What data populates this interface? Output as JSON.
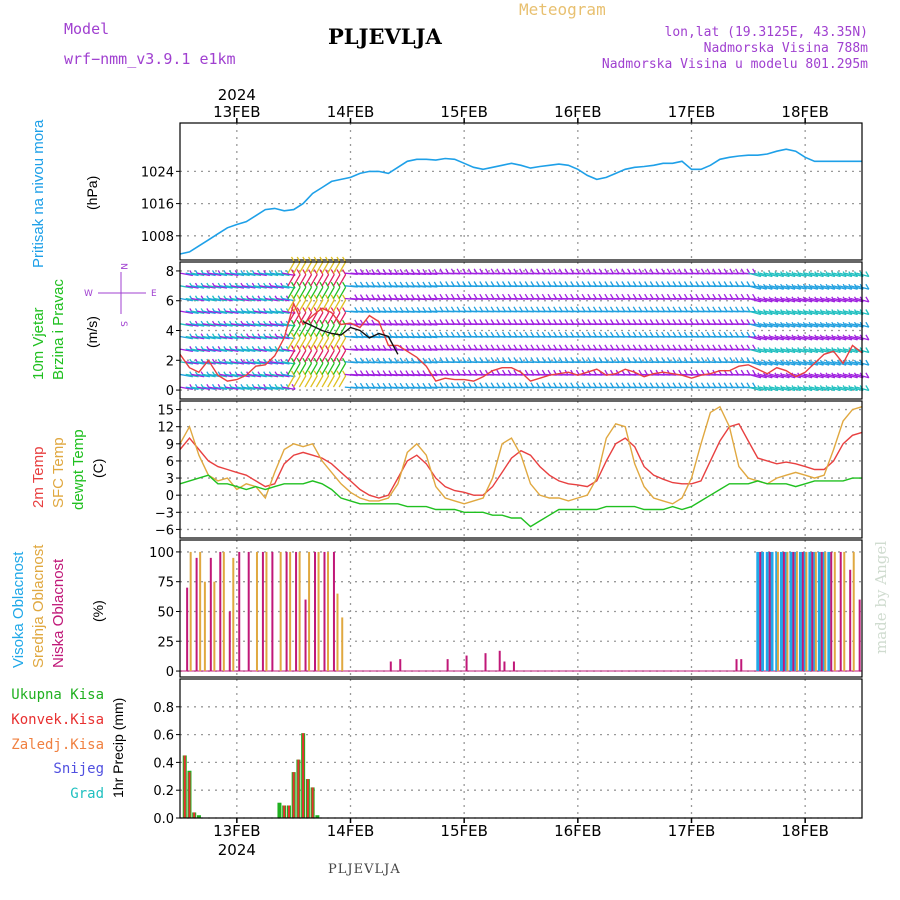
{
  "header": {
    "model_label": "Model",
    "model_name": "wrf−nmm_v3.9.1  e1km",
    "station": "PLJEVLJA",
    "meteogram": "Meteogram",
    "lonlat": "lon,lat (19.3125E, 43.35N)",
    "altitude": "Nadmorska Visina 788m",
    "model_altitude": "Nadmorska Visina u modelu 801.295m",
    "footer_station": "PLJEVLJA",
    "made_by": "made by Angel"
  },
  "axis_dates": {
    "year": "2024",
    "labels": [
      "13FEB",
      "14FEB",
      "15FEB",
      "16FEB",
      "17FEB",
      "18FEB"
    ]
  },
  "panel_labels": {
    "pressure_title": "Pritisak na nivou mora",
    "pressure_unit": "(hPa)",
    "wind_title_1": "10m Vjetar",
    "wind_title_2": "Brzina i Pravac",
    "wind_unit": "(m/s)",
    "wind_compass_w": "W",
    "wind_compass_e": "E",
    "wind_compass_n": "N",
    "wind_compass_s": "S",
    "temp_2m": "2m Temp",
    "temp_sfc": "SFC Temp",
    "temp_dewpt": "dewpt Temp",
    "temp_unit": "(C)",
    "cloud_high": "Visoka Oblacnost",
    "cloud_mid": "Srednja Oblacnost",
    "cloud_low": "Niska Oblacnost",
    "cloud_unit": "(%)",
    "precip_total": "Ukupna  Kisa",
    "precip_conv": "Konvek.Kisa",
    "precip_frozen": "Zaledj.Kisa",
    "precip_snow": "Snijeg",
    "precip_graupel": "Grad",
    "precip_unit": "1hr Precip (mm)"
  },
  "colors": {
    "pressure": "#1ea0e8",
    "temp_2m": "#e84040",
    "temp_sfc": "#e0a840",
    "dewpt": "#20c020",
    "cloud_high": "#20a8e8",
    "cloud_mid": "#e0a840",
    "cloud_low": "#c01878",
    "precip_total": "#20b020",
    "precip_conv": "#e83030",
    "precip_frozen": "#f08040",
    "precip_snow": "#5050e0",
    "precip_graupel": "#20c0c0",
    "grid": "#888888"
  },
  "chart_data": [
    {
      "type": "line",
      "name_panel": "pressure",
      "x_unit": "hours since 12FEB 12UTC",
      "xlim": [
        0,
        144
      ],
      "ylim": [
        1002,
        1036
      ],
      "yticks": [
        1008,
        1016,
        1024
      ],
      "x": [
        0,
        2,
        4,
        6,
        8,
        10,
        12,
        14,
        16,
        18,
        20,
        22,
        24,
        26,
        28,
        30,
        32,
        34,
        36,
        38,
        40,
        42,
        44,
        46,
        48,
        50,
        52,
        54,
        56,
        58,
        60,
        62,
        64,
        66,
        68,
        70,
        72,
        74,
        76,
        78,
        80,
        82,
        84,
        86,
        88,
        90,
        92,
        94,
        96,
        98,
        100,
        102,
        104,
        106,
        108,
        110,
        112,
        114,
        116,
        118,
        120,
        122,
        124,
        126,
        128,
        130,
        132,
        134,
        136,
        138,
        140,
        142,
        144
      ],
      "y": [
        1003.5,
        1004,
        1005.5,
        1007,
        1008.5,
        1010,
        1010.8,
        1011.5,
        1013,
        1014.5,
        1014.8,
        1014.2,
        1014.5,
        1016,
        1018.5,
        1020,
        1021.5,
        1022,
        1022.5,
        1023.5,
        1024,
        1024,
        1023.5,
        1025,
        1026.5,
        1027,
        1027,
        1026.8,
        1027.2,
        1027,
        1026,
        1025,
        1024.5,
        1025,
        1025.5,
        1026,
        1025.5,
        1024.8,
        1025.2,
        1025.5,
        1025.8,
        1025.5,
        1024.5,
        1023,
        1022,
        1022.5,
        1023.5,
        1024.5,
        1025,
        1025.2,
        1025.5,
        1026,
        1026,
        1026.5,
        1024.5,
        1024.5,
        1025.5,
        1027,
        1027.5,
        1027.8,
        1028,
        1028,
        1028.3,
        1029,
        1029.5,
        1029,
        1027.5,
        1026.5,
        1026.5,
        1026.5,
        1026.5,
        1026.5,
        1026.5
      ],
      "series_color_key": "pressure",
      "ylabel": "(hPa)"
    },
    {
      "type": "line",
      "name_panel": "wind",
      "xlim": [
        0,
        144
      ],
      "ylim": [
        -0.6,
        8.6
      ],
      "yticks": [
        0,
        2,
        4,
        6,
        8
      ],
      "series": [
        {
          "name": "speed",
          "color": "#e84040",
          "x": [
            0,
            2,
            4,
            6,
            8,
            10,
            12,
            14,
            16,
            18,
            20,
            22,
            24,
            26,
            28,
            30,
            32,
            34,
            36,
            38,
            40,
            42,
            44,
            46,
            48,
            50,
            52,
            54,
            56,
            58,
            60,
            62,
            64,
            66,
            68,
            70,
            72,
            74,
            76,
            78,
            80,
            82,
            84,
            86,
            88,
            90,
            92,
            94,
            96,
            98,
            100,
            102,
            104,
            106,
            108,
            110,
            112,
            114,
            116,
            118,
            120,
            122,
            124,
            126,
            128,
            130,
            132,
            134,
            136,
            138,
            140,
            142,
            144
          ],
          "y": [
            2.4,
            1.5,
            1.2,
            2.0,
            1.0,
            0.6,
            0.7,
            1.0,
            1.6,
            1.7,
            2.3,
            3.5,
            5.8,
            4.4,
            5.0,
            5.5,
            5.2,
            4.4,
            4.5,
            4.2,
            5.0,
            4.6,
            3.0,
            3.0,
            2.6,
            2.2,
            1.6,
            0.6,
            0.8,
            0.7,
            0.7,
            0.6,
            0.9,
            1.3,
            1.5,
            1.5,
            1.2,
            0.6,
            0.8,
            1.0,
            1.1,
            1.2,
            1.0,
            1.2,
            1.4,
            1.0,
            1.1,
            1.4,
            1.2,
            0.9,
            1.1,
            1.2,
            1.1,
            1.0,
            0.8,
            1.0,
            1.1,
            1.3,
            1.3,
            1.6,
            1.7,
            1.4,
            1.1,
            1.5,
            1.3,
            0.9,
            1.2,
            1.8,
            2.4,
            2.6,
            1.8,
            3.0,
            2.5
          ]
        },
        {
          "name": "gust",
          "color": "#111111",
          "x": [
            26,
            28,
            30,
            32,
            34,
            36,
            38,
            40,
            42,
            44,
            46
          ],
          "y": [
            4.6,
            4.3,
            4.0,
            3.8,
            3.7,
            4.2,
            4.0,
            3.5,
            3.8,
            3.6,
            2.4
          ]
        }
      ],
      "ylabel": "(m/s)"
    },
    {
      "type": "line",
      "name_panel": "temperature",
      "xlim": [
        0,
        144
      ],
      "ylim": [
        -7.5,
        16.5
      ],
      "yticks": [
        -6,
        -3,
        0,
        3,
        6,
        9,
        12,
        15
      ],
      "series": [
        {
          "name": "2m Temp",
          "color_key": "temp_2m",
          "x": [
            0,
            2,
            4,
            6,
            8,
            10,
            12,
            14,
            16,
            18,
            20,
            22,
            24,
            26,
            28,
            30,
            32,
            34,
            36,
            38,
            40,
            42,
            44,
            46,
            48,
            50,
            52,
            54,
            56,
            58,
            60,
            62,
            64,
            66,
            68,
            70,
            72,
            74,
            76,
            78,
            80,
            82,
            84,
            86,
            88,
            90,
            92,
            94,
            96,
            98,
            100,
            102,
            104,
            106,
            108,
            110,
            112,
            114,
            116,
            118,
            120,
            122,
            124,
            126,
            128,
            130,
            132,
            134,
            136,
            138,
            140,
            142,
            144
          ],
          "y": [
            8,
            10,
            8,
            6,
            5,
            4.5,
            4,
            3.5,
            2.5,
            1.5,
            2,
            5.5,
            7,
            7.5,
            7,
            6.5,
            5.5,
            4,
            2.5,
            1,
            0,
            -0.5,
            0,
            3,
            6,
            7,
            5.5,
            3,
            1.5,
            0.8,
            0.5,
            0,
            0,
            1.5,
            4,
            6.5,
            7.8,
            7,
            5,
            3.5,
            2.5,
            2,
            1.8,
            1.5,
            2.5,
            6,
            9,
            10,
            8.5,
            5,
            3.5,
            2.8,
            2.2,
            2,
            2,
            2.5,
            6,
            9.5,
            12,
            12.5,
            9.5,
            6.5,
            6,
            5.5,
            5.8,
            5.5,
            5,
            4.5,
            4.5,
            6,
            9,
            10.5,
            11
          ]
        },
        {
          "name": "SFC Temp",
          "color_key": "temp_sfc",
          "x": [
            0,
            2,
            4,
            6,
            8,
            10,
            12,
            14,
            16,
            18,
            20,
            22,
            24,
            26,
            28,
            30,
            32,
            34,
            36,
            38,
            40,
            42,
            44,
            46,
            48,
            50,
            52,
            54,
            56,
            58,
            60,
            62,
            64,
            66,
            68,
            70,
            72,
            74,
            76,
            78,
            80,
            82,
            84,
            86,
            88,
            90,
            92,
            94,
            96,
            98,
            100,
            102,
            104,
            106,
            108,
            110,
            112,
            114,
            116,
            118,
            120,
            122,
            124,
            126,
            128,
            130,
            132,
            134,
            136,
            138,
            140,
            142,
            144
          ],
          "y": [
            9,
            12,
            7,
            3.5,
            2.5,
            3,
            1,
            2,
            1.5,
            -0.5,
            4,
            8,
            9,
            8.5,
            9,
            6,
            4,
            2,
            0.5,
            -0.5,
            -1,
            -1,
            -0.5,
            2,
            7.5,
            9,
            7,
            1.5,
            -0.5,
            -1,
            -1.5,
            -1,
            -0.5,
            3,
            9,
            10,
            7,
            2,
            0,
            -0.5,
            -0.5,
            -1,
            -0.5,
            0,
            3,
            10,
            12.5,
            12,
            5.5,
            1.5,
            -0.5,
            -1,
            -1.5,
            -0.5,
            3,
            9,
            14.5,
            15.5,
            12,
            5,
            3,
            2.5,
            2,
            3,
            3.5,
            4,
            3.5,
            3,
            3.5,
            8,
            13,
            15,
            15.5
          ]
        },
        {
          "name": "dewpt Temp",
          "color_key": "dewpt",
          "x": [
            0,
            2,
            4,
            6,
            8,
            10,
            12,
            14,
            16,
            18,
            20,
            22,
            24,
            26,
            28,
            30,
            32,
            34,
            36,
            38,
            40,
            42,
            44,
            46,
            48,
            50,
            52,
            54,
            56,
            58,
            60,
            62,
            64,
            66,
            68,
            70,
            72,
            74,
            76,
            78,
            80,
            82,
            84,
            86,
            88,
            90,
            92,
            94,
            96,
            98,
            100,
            102,
            104,
            106,
            108,
            110,
            112,
            114,
            116,
            118,
            120,
            122,
            124,
            126,
            128,
            130,
            132,
            134,
            136,
            138,
            140,
            142,
            144
          ],
          "y": [
            2,
            2.5,
            3,
            3.5,
            2,
            2,
            1.5,
            1,
            1.5,
            1,
            1.5,
            2,
            2,
            2,
            2.5,
            2,
            1,
            -0.5,
            -1,
            -1.5,
            -1.5,
            -1.5,
            -1.5,
            -1.5,
            -2,
            -2,
            -2,
            -2.5,
            -2.5,
            -2.5,
            -3,
            -3,
            -3,
            -3.5,
            -3.5,
            -4,
            -4,
            -5.5,
            -4.5,
            -3.5,
            -2.5,
            -2.5,
            -2.5,
            -2.5,
            -2.5,
            -2,
            -2,
            -2,
            -2,
            -2.5,
            -2.5,
            -2.5,
            -2,
            -2.5,
            -2,
            -1,
            0,
            1,
            2,
            2,
            2,
            2.5,
            2,
            2,
            2,
            1.5,
            2,
            2.5,
            2.5,
            2.5,
            2.5,
            3,
            3
          ]
        }
      ],
      "ylabel": "(C)"
    },
    {
      "type": "bar",
      "name_panel": "cloud",
      "xlim": [
        0,
        144
      ],
      "ylim": [
        -5,
        110
      ],
      "yticks": [
        0,
        25,
        50,
        75,
        100
      ],
      "series": [
        {
          "name": "Visoka Oblacnost",
          "color_key": "cloud_high",
          "x": [
            122,
            123,
            124,
            125,
            126,
            127,
            128,
            129,
            130,
            131,
            132,
            133,
            134,
            135,
            136,
            137
          ],
          "y": [
            100,
            100,
            100,
            100,
            100,
            100,
            100,
            100,
            100,
            100,
            100,
            100,
            100,
            100,
            100,
            100
          ]
        },
        {
          "name": "Srednja Oblacnost",
          "color_key": "cloud_mid",
          "x": [
            2,
            4,
            5,
            7,
            9,
            11,
            16,
            18,
            21,
            23,
            25,
            27,
            29,
            31,
            33,
            34,
            126,
            128,
            130,
            132,
            134,
            136,
            138,
            140,
            142
          ],
          "y": [
            100,
            100,
            75,
            75,
            100,
            95,
            100,
            100,
            100,
            100,
            100,
            100,
            100,
            100,
            65,
            45,
            100,
            100,
            100,
            100,
            100,
            100,
            100,
            100,
            100
          ]
        },
        {
          "name": "Niska Oblacnost",
          "color_key": "cloud_low",
          "x": [
            1,
            3,
            6,
            8,
            10,
            12,
            14,
            17,
            19,
            22,
            24,
            26,
            28,
            30,
            32,
            44,
            46,
            56,
            60,
            64,
            67,
            68,
            70,
            117,
            118,
            122,
            124,
            127,
            129,
            131,
            133,
            135,
            137,
            139,
            141,
            143
          ],
          "y": [
            70,
            95,
            95,
            100,
            50,
            100,
            100,
            100,
            100,
            100,
            100,
            60,
            100,
            100,
            100,
            8,
            10,
            10,
            13,
            15,
            17,
            8,
            8,
            10,
            10,
            100,
            100,
            100,
            100,
            100,
            100,
            100,
            100,
            100,
            85,
            60
          ]
        }
      ],
      "ylabel": "(%)"
    },
    {
      "type": "bar",
      "name_panel": "precip",
      "xlim": [
        0,
        144
      ],
      "ylim": [
        0,
        1.0
      ],
      "yticks": [
        0.0,
        0.2,
        0.4,
        0.6,
        0.8
      ],
      "series": [
        {
          "name": "Ukupna  Kisa",
          "color_key": "precip_total",
          "x": [
            1,
            2,
            3,
            4,
            21,
            22,
            23,
            24,
            25,
            26,
            27,
            28,
            29
          ],
          "y": [
            0.45,
            0.34,
            0.04,
            0.02,
            0.11,
            0.09,
            0.09,
            0.33,
            0.42,
            0.61,
            0.28,
            0.22,
            0.02
          ]
        },
        {
          "name": "Konvek.Kisa",
          "color_key": "precip_conv",
          "x": [
            1,
            2,
            3,
            22,
            23,
            24,
            25,
            26,
            27,
            28
          ],
          "y": [
            0.45,
            0.33,
            0.04,
            0.09,
            0.09,
            0.33,
            0.42,
            0.61,
            0.28,
            0.22
          ]
        }
      ],
      "ylabel": "1hr Precip (mm)"
    }
  ]
}
